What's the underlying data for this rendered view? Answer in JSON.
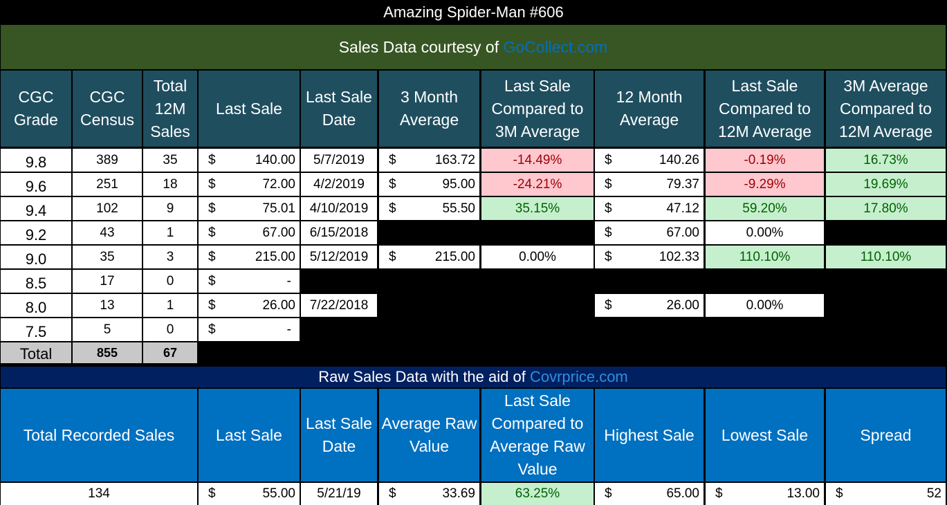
{
  "title": "Amazing Spider-Man #606",
  "gocollect": {
    "prefix": "Sales Data courtesy of ",
    "link": "GoCollect.com"
  },
  "headers": {
    "grade": "CGC Grade",
    "census": "CGC Census",
    "total12m": "Total 12M Sales",
    "last_sale": "Last Sale",
    "last_sale_date": "Last Sale Date",
    "avg3m": "3 Month Average",
    "vs3m": "Last Sale Compared to 3M Average",
    "avg12m": "12 Month Average",
    "vs12m": "Last Sale Compared to 12M Average",
    "avg3m_vs12m": "3M Average Compared to 12M Average"
  },
  "currency": "$",
  "rows": [
    {
      "grade": "9.8",
      "census": "389",
      "sales": "35",
      "last_sale": "140.00",
      "date": "5/7/2019",
      "avg3m": "163.72",
      "vs3m": "-14.49%",
      "avg12m": "140.26",
      "vs12m": "-0.19%",
      "avg3m_vs12m": "16.73%"
    },
    {
      "grade": "9.6",
      "census": "251",
      "sales": "18",
      "last_sale": "72.00",
      "date": "4/2/2019",
      "avg3m": "95.00",
      "vs3m": "-24.21%",
      "avg12m": "79.37",
      "vs12m": "-9.29%",
      "avg3m_vs12m": "19.69%"
    },
    {
      "grade": "9.4",
      "census": "102",
      "sales": "9",
      "last_sale": "75.01",
      "date": "4/10/2019",
      "avg3m": "55.50",
      "vs3m": "35.15%",
      "avg12m": "47.12",
      "vs12m": "59.20%",
      "avg3m_vs12m": "17.80%"
    },
    {
      "grade": "9.2",
      "census": "43",
      "sales": "1",
      "last_sale": "67.00",
      "date": "6/15/2018",
      "avg12m": "67.00",
      "vs12m": "0.00%"
    },
    {
      "grade": "9.0",
      "census": "35",
      "sales": "3",
      "last_sale": "215.00",
      "date": "5/12/2019",
      "avg3m": "215.00",
      "vs3m": "0.00%",
      "avg12m": "102.33",
      "vs12m": "110.10%",
      "avg3m_vs12m": "110.10%"
    },
    {
      "grade": "8.5",
      "census": "17",
      "sales": "0",
      "last_sale": "-"
    },
    {
      "grade": "8.0",
      "census": "13",
      "sales": "1",
      "last_sale": "26.00",
      "date": "7/22/2018",
      "avg12m": "26.00",
      "vs12m": "0.00%"
    },
    {
      "grade": "7.5",
      "census": "5",
      "sales": "0",
      "last_sale": "-"
    }
  ],
  "totals": {
    "label": "Total",
    "census": "855",
    "sales": "67"
  },
  "covrprice": {
    "prefix": "Raw Sales Data with the aid of ",
    "link": "Covrprice.com"
  },
  "raw_headers": {
    "total_recorded": "Total Recorded Sales",
    "last_sale": "Last Sale",
    "last_sale_date": "Last Sale Date",
    "avg_raw": "Average Raw Value",
    "vs_avg_raw": "Last Sale Compared to Average Raw Value",
    "highest": "Highest Sale",
    "lowest": "Lowest Sale",
    "spread": "Spread"
  },
  "raw_row": {
    "total_recorded": "134",
    "last_sale": "55.00",
    "date": "5/21/19",
    "avg_raw": "33.69",
    "vs_avg_raw": "63.25%",
    "highest": "65.00",
    "lowest": "13.00",
    "spread": "52"
  }
}
